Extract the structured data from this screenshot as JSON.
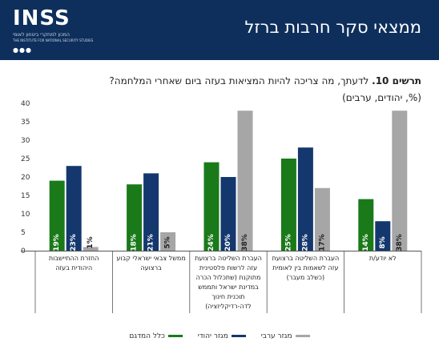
{
  "header": {
    "logo_text": "INSS",
    "logo_subtitle_he": "המכון למחקרי ביטחון לאומי",
    "logo_subtitle_en": "THE INSTITUTE FOR NATIONAL SECURITY STUDIES",
    "title": "ממצאי סקר חרבות ברזל",
    "bg_color": "#0e2f5c"
  },
  "question": {
    "label": "תרשים 10.",
    "text": "לדעתך, מה צריכה להיות המציאות בעזה ביום שאחרי המלחמה?",
    "subtitle": "(%, יהודים, ערבים)"
  },
  "chart_data": {
    "type": "bar",
    "title": "",
    "categories": [
      "החזרת ההתיישבות היהודית בעזה",
      "ממשל צבאי ישראלי קבוע ברצועה",
      "העברת השליטה ברצועת עזה לרשות פלסטינית מתוקנת (שתכלול הכרה במדינת ישראל ותממש תוכנית חינוך לדה-רדיקליזציה)",
      "העברת השליטה ברצועת עזה לשאמות בין לאומית (כשלב מעבר)",
      "לא יודע/ת"
    ],
    "series": [
      {
        "name": "כלל המדגם",
        "color": "#1a7a1a",
        "values": [
          19,
          18,
          24,
          25,
          14
        ]
      },
      {
        "name": "מגזר יהודי",
        "color": "#14386e",
        "values": [
          23,
          21,
          20,
          28,
          8
        ]
      },
      {
        "name": "מגזר ערבי",
        "color": "#a6a6a6",
        "values": [
          1,
          5,
          38,
          17,
          38
        ]
      }
    ],
    "labels": [
      [
        "19%",
        "18%",
        "24%",
        "25%",
        "14%"
      ],
      [
        "23%",
        "21%",
        "20%",
        "28%",
        "8%"
      ],
      [
        "1%",
        "5%",
        "38%",
        "17%",
        "38%"
      ]
    ],
    "y_ticks": [
      "0",
      "5",
      "10",
      "15",
      "20",
      "25",
      "30",
      "35",
      "40"
    ],
    "ylim": [
      0,
      40
    ],
    "legend_position": "bottom"
  }
}
